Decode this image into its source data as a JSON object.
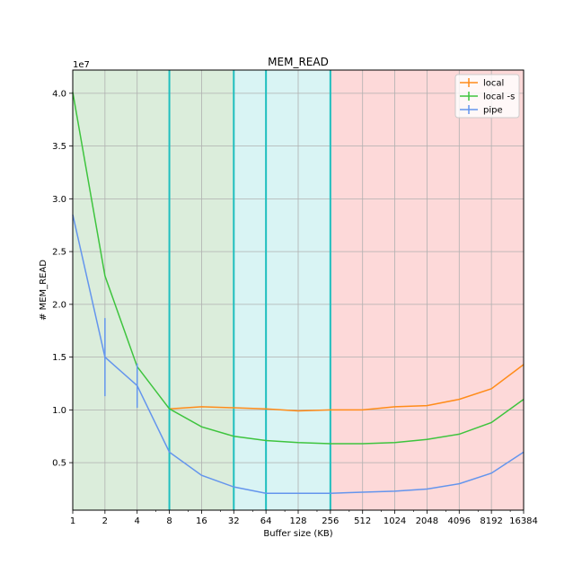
{
  "chart_data": {
    "type": "line",
    "title": "MEM_READ",
    "xlabel": "Buffer size (KB)",
    "ylabel": "# MEM_READ",
    "y_offset_label": "1e7",
    "x_scale": "log2",
    "x": [
      1,
      2,
      4,
      8,
      16,
      32,
      64,
      128,
      256,
      512,
      1024,
      2048,
      4096,
      8192,
      16384
    ],
    "x_tick_labels": [
      "1",
      "2",
      "4",
      "8",
      "16",
      "32",
      "64",
      "128",
      "256",
      "512",
      "1024",
      "2048",
      "4096",
      "8192",
      "16384"
    ],
    "y_ticks": [
      0.5,
      1.0,
      1.5,
      2.0,
      2.5,
      3.0,
      3.5,
      4.0
    ],
    "y_tick_labels": [
      "0.5",
      "1.0",
      "1.5",
      "2.0",
      "2.5",
      "3.0",
      "3.5",
      "4.0"
    ],
    "xlim": [
      1,
      16384
    ],
    "ylim": [
      0.05,
      4.22
    ],
    "grid": true,
    "legend_position": "top-right",
    "regions": [
      {
        "x_start": 1,
        "x_end": 32,
        "color": "#dbeddb"
      },
      {
        "x_start": 32,
        "x_end": 256,
        "color": "#d9f4f4"
      },
      {
        "x_start": 256,
        "x_end": 16384,
        "color": "#fdd9d9"
      }
    ],
    "vlines": {
      "x": [
        8,
        32,
        64,
        256
      ],
      "color": "#1fbfbf"
    },
    "series": [
      {
        "name": "local",
        "color": "#ff8c1a",
        "x": [
          8,
          16,
          32,
          64,
          128,
          256,
          512,
          1024,
          2048,
          4096,
          8192,
          16384
        ],
        "values": [
          1.01,
          1.03,
          1.02,
          1.01,
          0.99,
          1.0,
          1.0,
          1.03,
          1.04,
          1.1,
          1.2,
          1.43
        ],
        "errors": [
          0,
          0,
          0,
          0,
          0,
          0,
          0,
          0,
          0,
          0,
          0,
          0
        ]
      },
      {
        "name": "local -s",
        "color": "#3ec43e",
        "x": [
          1,
          2,
          4,
          8,
          16,
          32,
          64,
          128,
          256,
          512,
          1024,
          2048,
          4096,
          8192,
          16384
        ],
        "values": [
          4.01,
          2.27,
          1.41,
          1.01,
          0.84,
          0.75,
          0.71,
          0.69,
          0.68,
          0.68,
          0.69,
          0.72,
          0.77,
          0.88,
          1.1
        ],
        "errors": [
          0,
          0,
          0,
          0,
          0,
          0,
          0,
          0,
          0,
          0,
          0,
          0,
          0,
          0,
          0
        ]
      },
      {
        "name": "pipe",
        "color": "#6495ed",
        "x": [
          1,
          2,
          4,
          8,
          16,
          32,
          64,
          128,
          256,
          512,
          1024,
          2048,
          4096,
          8192,
          16384
        ],
        "values": [
          2.85,
          1.5,
          1.23,
          0.6,
          0.38,
          0.27,
          0.21,
          0.21,
          0.21,
          0.22,
          0.23,
          0.25,
          0.3,
          0.4,
          0.6
        ],
        "errors": [
          0,
          0.37,
          0.21,
          0,
          0,
          0,
          0,
          0,
          0,
          0,
          0,
          0,
          0,
          0,
          0
        ]
      }
    ]
  }
}
